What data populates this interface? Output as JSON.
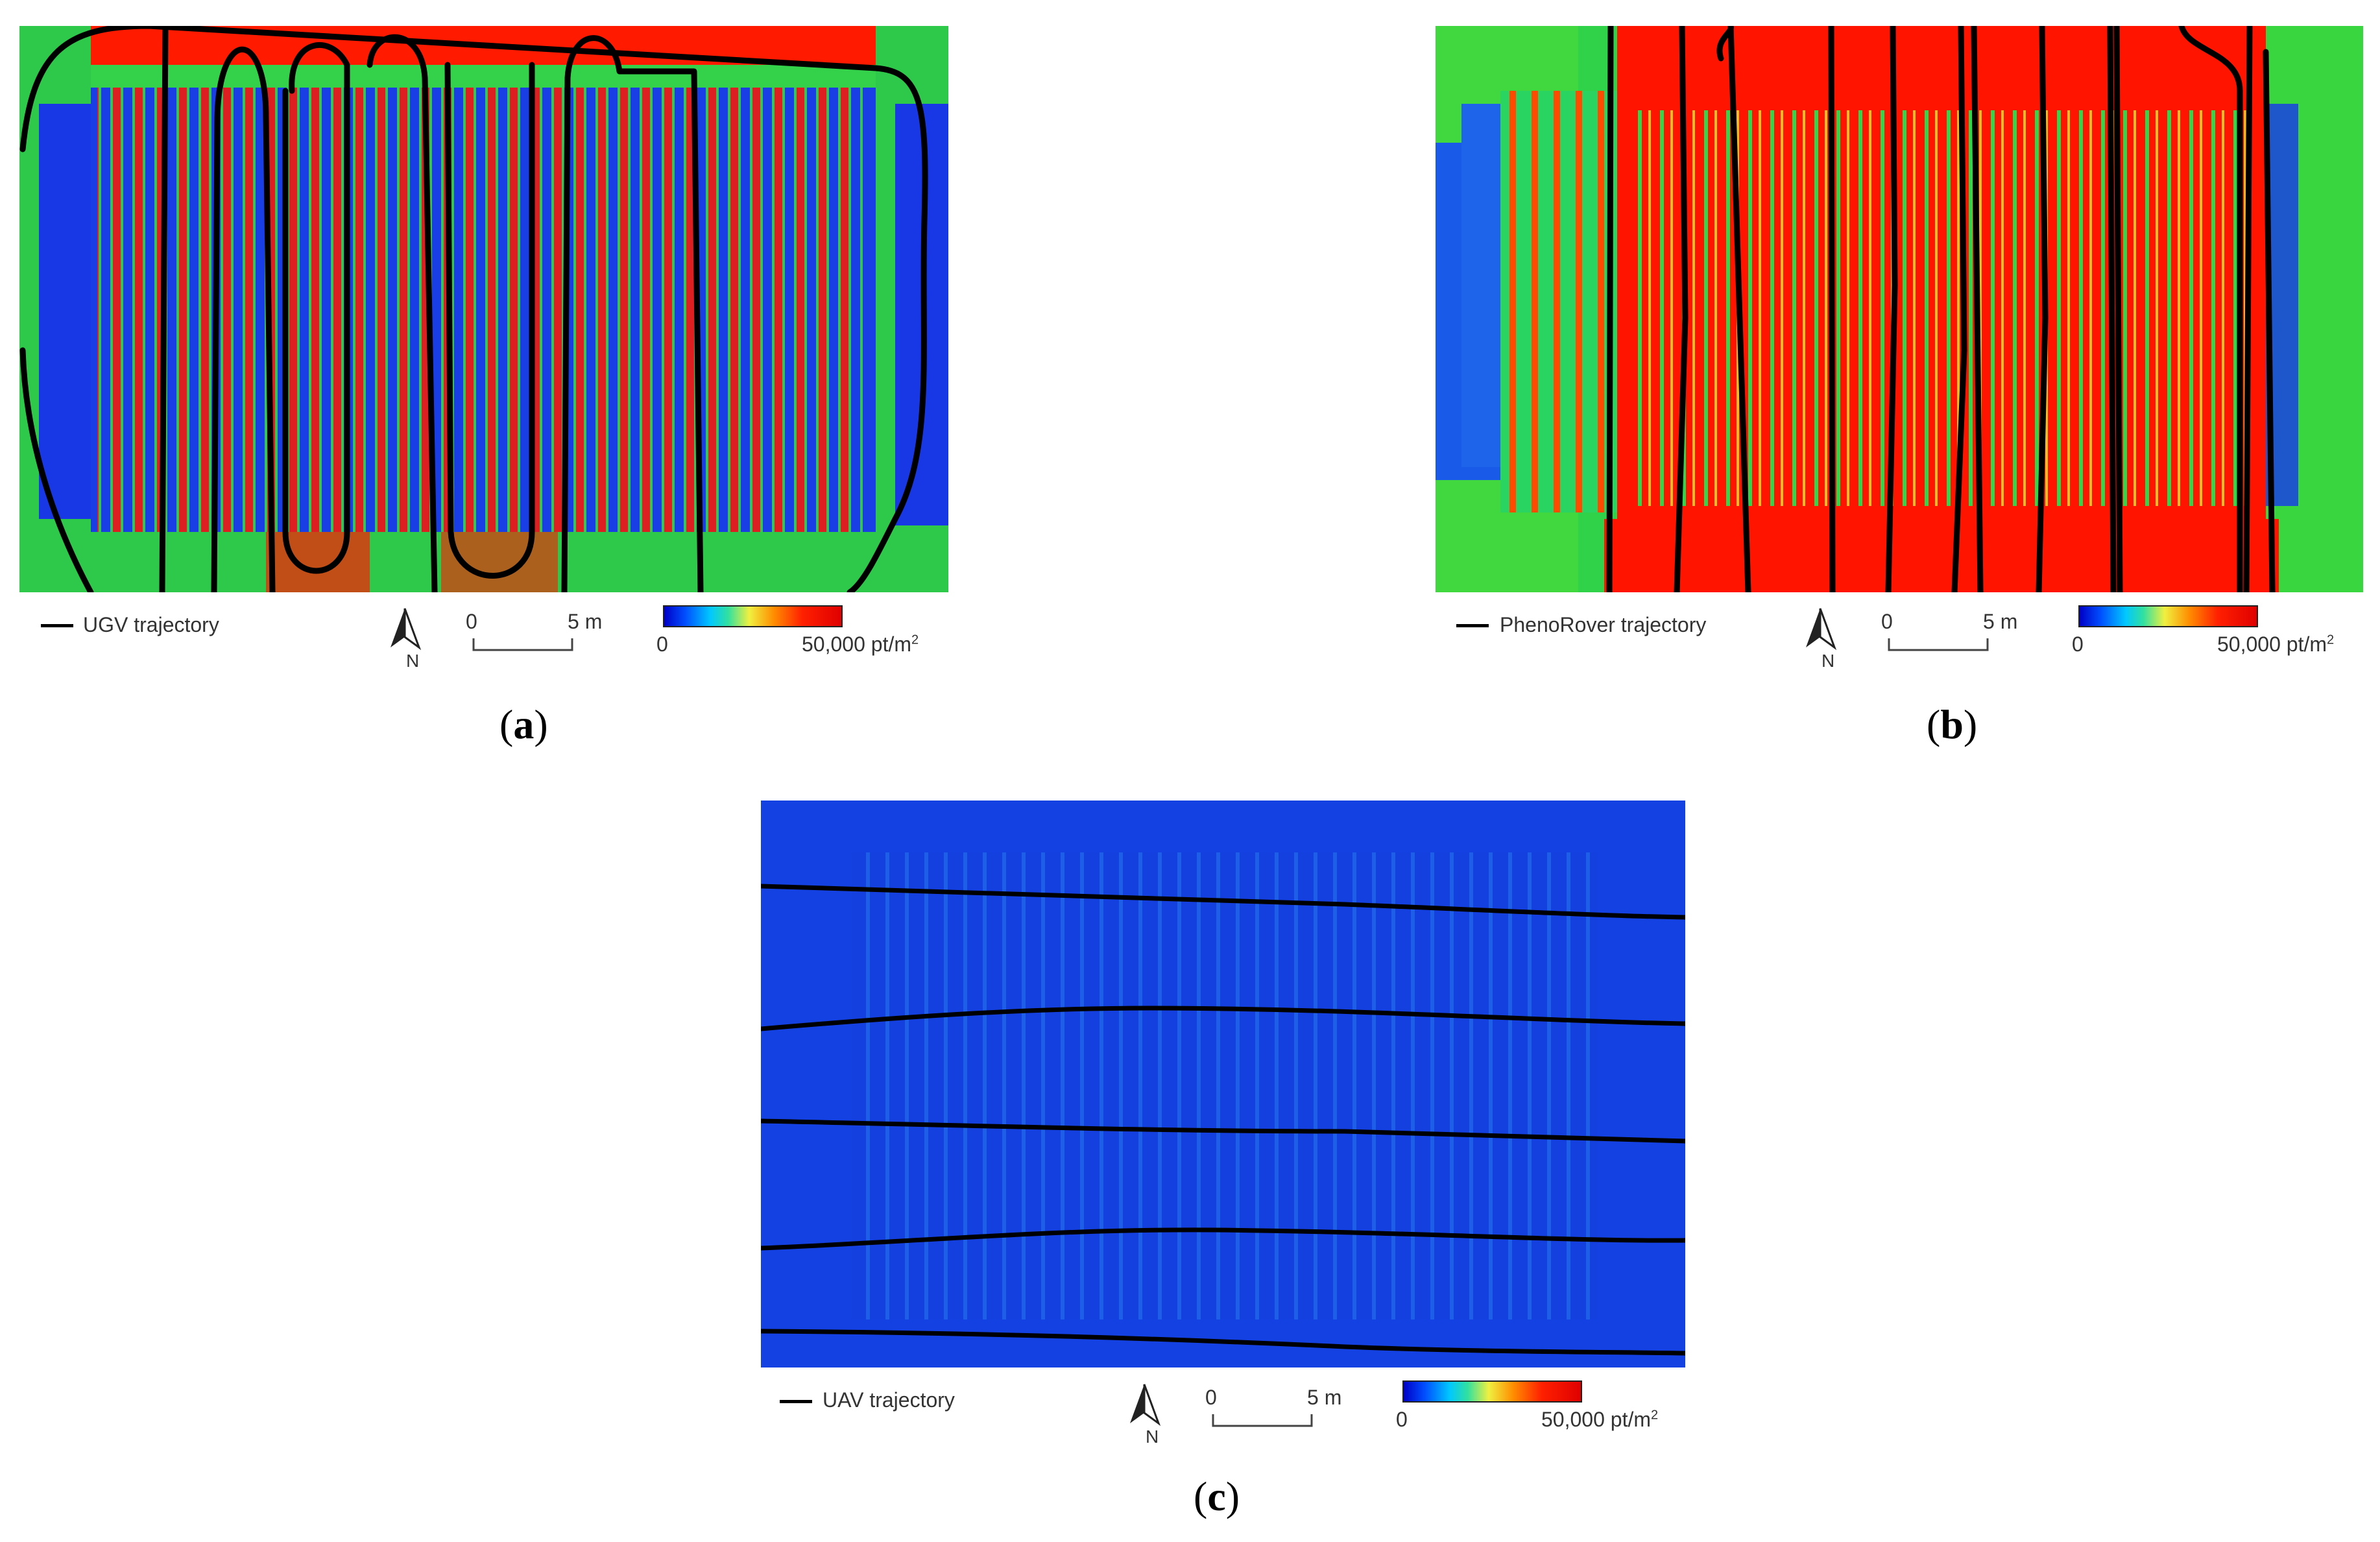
{
  "panels": [
    {
      "id": "a",
      "legend": "UGV trajectory",
      "north_label": "N",
      "scale_zero": "0",
      "scale_end": "5 m",
      "cbar_min": "0",
      "cbar_max": "50,000 pt/m",
      "cbar_max_sup": "2",
      "caption_open": "(",
      "caption_letter": "a",
      "caption_close": ")"
    },
    {
      "id": "b",
      "legend": "PhenoRover trajectory",
      "north_label": "N",
      "scale_zero": "0",
      "scale_end": "5 m",
      "cbar_min": "0",
      "cbar_max": "50,000 pt/m",
      "cbar_max_sup": "2",
      "caption_open": "(",
      "caption_letter": "b",
      "caption_close": ")"
    },
    {
      "id": "c",
      "legend": "UAV trajectory",
      "north_label": "N",
      "scale_zero": "0",
      "scale_end": "5 m",
      "cbar_min": "0",
      "cbar_max": "50,000 pt/m",
      "cbar_max_sup": "2",
      "caption_open": "(",
      "caption_letter": "c",
      "caption_close": ")"
    }
  ],
  "colors": {
    "low": "#0000c8",
    "mid": "#30e060",
    "high": "#ff0000",
    "trajectory": "#000000"
  }
}
